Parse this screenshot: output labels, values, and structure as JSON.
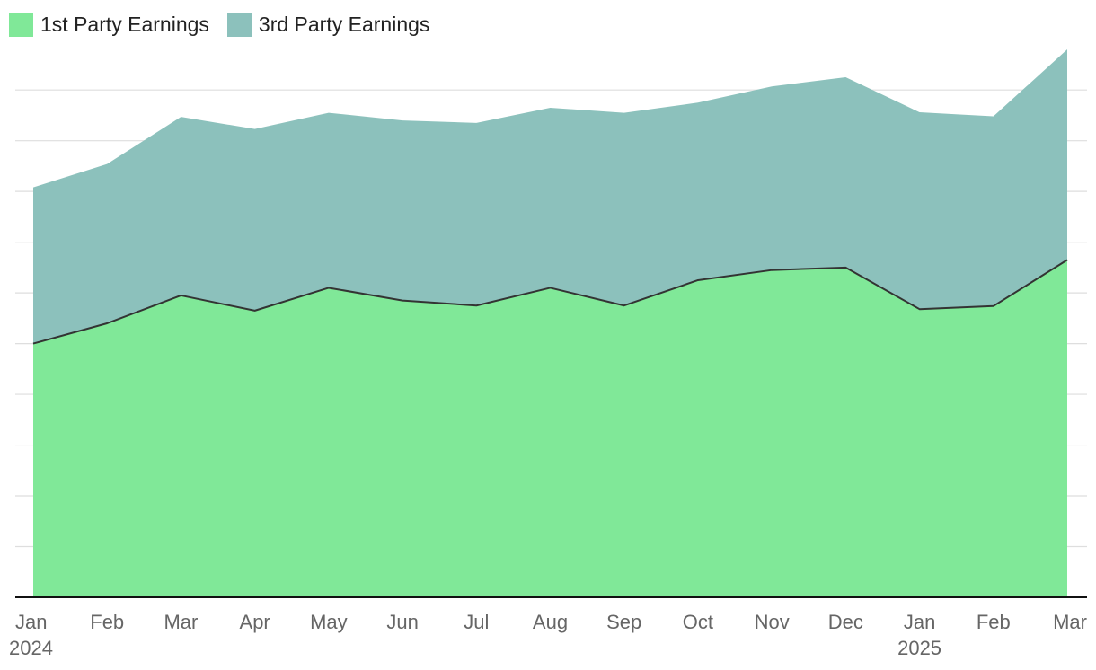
{
  "chart_data": {
    "type": "area",
    "stacked": true,
    "title": "",
    "xlabel": "",
    "ylabel": "",
    "ylim": [
      0,
      108
    ],
    "grid": true,
    "legend_position": "top-left",
    "x_ticks": [
      {
        "month": "Jan",
        "year": "2024"
      },
      {
        "month": "Feb",
        "year": ""
      },
      {
        "month": "Mar",
        "year": ""
      },
      {
        "month": "Apr",
        "year": ""
      },
      {
        "month": "May",
        "year": ""
      },
      {
        "month": "Jun",
        "year": ""
      },
      {
        "month": "Jul",
        "year": ""
      },
      {
        "month": "Aug",
        "year": ""
      },
      {
        "month": "Sep",
        "year": ""
      },
      {
        "month": "Oct",
        "year": ""
      },
      {
        "month": "Nov",
        "year": ""
      },
      {
        "month": "Dec",
        "year": ""
      },
      {
        "month": "Jan",
        "year": "2025"
      },
      {
        "month": "Feb",
        "year": ""
      },
      {
        "month": "Mar",
        "year": ""
      }
    ],
    "series": [
      {
        "name": "1st Party Earnings",
        "color": "#80e898",
        "values": [
          50,
          54,
          59.5,
          56.5,
          61,
          58.5,
          57.5,
          61,
          57.5,
          62.5,
          64.5,
          65,
          56.8,
          57.4,
          66.5
        ]
      },
      {
        "name": "3rd Party Earnings",
        "color": "#8cc1bc",
        "values": [
          30.8,
          31.4,
          35.2,
          35.8,
          34.5,
          35.5,
          36,
          35.5,
          38,
          35,
          36.2,
          37.5,
          38.8,
          37.4,
          41.5
        ]
      }
    ]
  }
}
